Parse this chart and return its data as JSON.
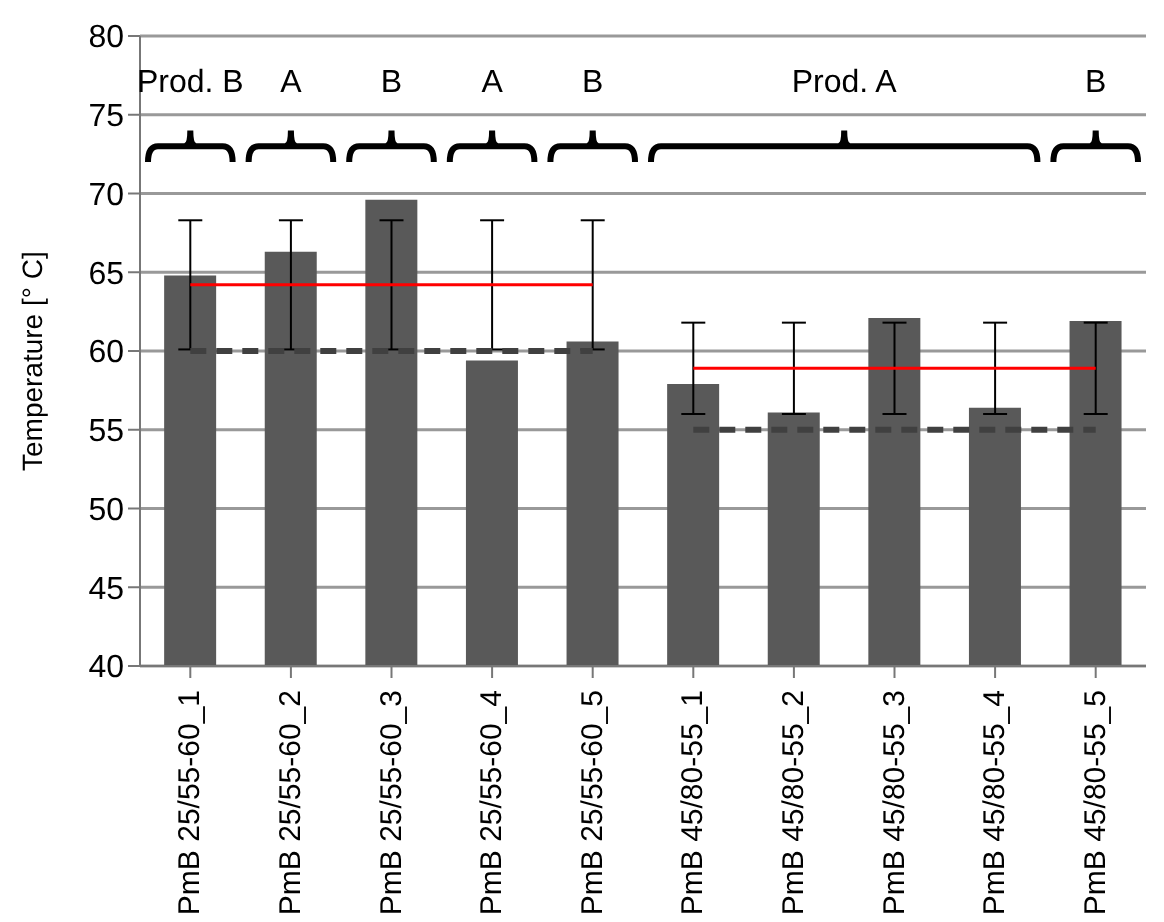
{
  "chart_data": {
    "type": "bar",
    "ylabel": "Temperature [° C]",
    "categories": [
      "PmB 25/55-60_1",
      "PmB 25/55-60_2",
      "PmB 25/55-60_3",
      "PmB 25/55-60_4",
      "PmB 25/55-60_5",
      "PmB 45/80-55_1",
      "PmB 45/80-55_2",
      "PmB 45/80-55_3",
      "PmB 45/80-55_4",
      "PmB 45/80-55_5"
    ],
    "series": [
      {
        "color": "#595959",
        "values": [
          64.8,
          66.3,
          69.6,
          59.4,
          60.6,
          57.9,
          56.1,
          62.1,
          56.4,
          61.9
        ]
      },
      {
        "type": "line",
        "color": "#ff0000",
        "line_style": "solid",
        "values": [
          64.2,
          64.2,
          64.2,
          64.2,
          64.2,
          null,
          null,
          null,
          null,
          null
        ],
        "errors": [
          4.1,
          4.1,
          4.1,
          4.1,
          4.1,
          null,
          null,
          null,
          null,
          null
        ]
      },
      {
        "type": "line",
        "color": "#ff0000",
        "line_style": "solid",
        "values": [
          null,
          null,
          null,
          null,
          null,
          58.9,
          58.9,
          58.9,
          58.9,
          58.9
        ],
        "errors": [
          null,
          null,
          null,
          null,
          null,
          2.9,
          2.9,
          2.9,
          2.9,
          2.9
        ]
      },
      {
        "type": "line",
        "color": "#404040",
        "line_style": "dashed",
        "values": [
          60,
          60,
          60,
          60,
          60,
          null,
          null,
          null,
          null,
          null
        ]
      },
      {
        "type": "line",
        "color": "#404040",
        "line_style": "dashed",
        "values": [
          null,
          null,
          null,
          null,
          null,
          55,
          55,
          55,
          55,
          55
        ]
      }
    ],
    "ylim": [
      40,
      80
    ],
    "yticks": [
      40,
      45,
      50,
      55,
      60,
      65,
      70,
      75,
      80
    ],
    "grid": "y",
    "legend": false,
    "marker": "none",
    "annotations": [
      "Prod. B",
      "A",
      "B",
      "A",
      "B",
      "Prod. A",
      "B"
    ]
  }
}
